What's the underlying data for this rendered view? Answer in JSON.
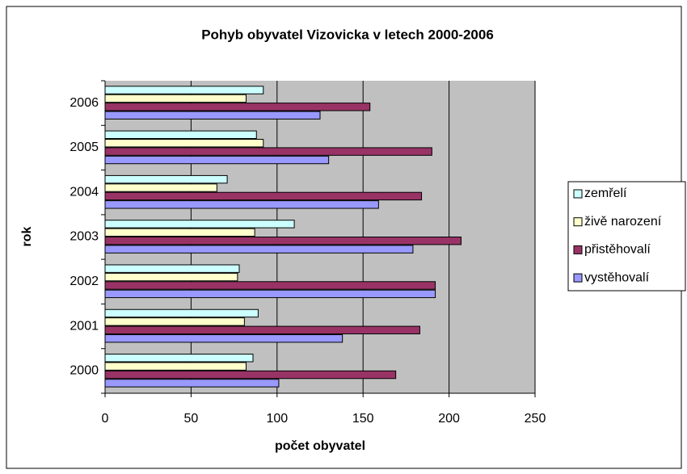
{
  "chart_data": {
    "type": "bar",
    "orientation": "horizontal",
    "title": "Pohyb obyvatel Vizovicka v letech 2000-2006",
    "x_label": "počet obyvatel",
    "y_label": "rok",
    "categories": [
      "2000",
      "2001",
      "2002",
      "2003",
      "2004",
      "2005",
      "2006"
    ],
    "series": [
      {
        "name": "zemřelí",
        "color": "#ccffff",
        "values": [
          86,
          89,
          78,
          110,
          71,
          88,
          92
        ]
      },
      {
        "name": "živě narození",
        "color": "#ffffcc",
        "values": [
          82,
          81,
          77,
          87,
          65,
          92,
          82
        ]
      },
      {
        "name": "přistěhovalí",
        "color": "#993366",
        "values": [
          169,
          183,
          192,
          207,
          184,
          190,
          154
        ]
      },
      {
        "name": "vystěhovalí",
        "color": "#9999ff",
        "values": [
          101,
          138,
          192,
          179,
          159,
          130,
          125
        ]
      }
    ],
    "xlim": [
      0,
      250
    ],
    "xticks": [
      0,
      50,
      100,
      150,
      200,
      250
    ],
    "grid": true,
    "legend": "right"
  }
}
